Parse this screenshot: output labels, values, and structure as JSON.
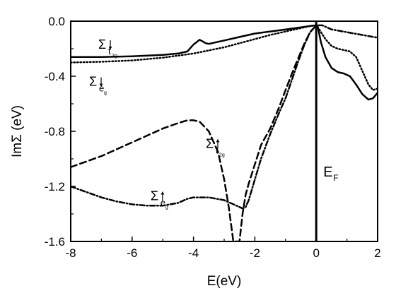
{
  "chart_data": {
    "type": "line",
    "xlabel": "E(eV)",
    "ylabel": "ImΣ (eV)",
    "xlim": [
      -8,
      2
    ],
    "ylim": [
      -1.6,
      0.0
    ],
    "x_ticks": [
      "-8",
      "-6",
      "-4",
      "-2",
      "0",
      "2"
    ],
    "y_ticks": [
      "0.0",
      "-0.4",
      "-0.8",
      "-1.2",
      "-1.6"
    ],
    "grid": false,
    "legend": "none",
    "vline": {
      "x": 0,
      "label": "E",
      "label_sub": "F"
    },
    "annotations": [
      {
        "text": "Σ",
        "sub": "t2g",
        "spin": "down",
        "x": -7.1,
        "y": -0.2
      },
      {
        "text": "Σ",
        "sub": "eg",
        "spin": "down",
        "x": -7.4,
        "y": -0.47
      },
      {
        "text": "Σ",
        "sub": "t2g",
        "spin": "up",
        "x": -3.6,
        "y": -0.92
      },
      {
        "text": "Σ",
        "sub": "eg",
        "spin": "up",
        "x": -5.4,
        "y": -1.3
      }
    ],
    "series": [
      {
        "style": "solid",
        "x": [
          -8,
          -7,
          -6,
          -5,
          -4.5,
          -4.2,
          -4.0,
          -3.8,
          -3.6,
          -3.5,
          -3.3,
          -3.0,
          -2.5,
          -2.0,
          -1.5,
          -1.0,
          -0.5,
          -0.2,
          0.0,
          0.05,
          0.15,
          0.3,
          0.5,
          0.7,
          0.9,
          1.1,
          1.3,
          1.5,
          1.7,
          1.85,
          2.0
        ],
        "y": [
          -0.26,
          -0.26,
          -0.255,
          -0.245,
          -0.235,
          -0.22,
          -0.17,
          -0.135,
          -0.16,
          -0.165,
          -0.155,
          -0.14,
          -0.115,
          -0.09,
          -0.075,
          -0.06,
          -0.045,
          -0.035,
          -0.03,
          -0.04,
          -0.15,
          -0.26,
          -0.34,
          -0.37,
          -0.38,
          -0.4,
          -0.46,
          -0.53,
          -0.57,
          -0.56,
          -0.52
        ]
      },
      {
        "style": "dotted",
        "x": [
          -8,
          -7,
          -6,
          -5,
          -4,
          -3,
          -2,
          -1.5,
          -1.0,
          -0.5,
          -0.2,
          0.0,
          0.1,
          0.3,
          0.5,
          0.7,
          0.9,
          1.1,
          1.3,
          1.5,
          1.7,
          1.85,
          2.0
        ],
        "y": [
          -0.3,
          -0.295,
          -0.285,
          -0.265,
          -0.235,
          -0.19,
          -0.13,
          -0.1,
          -0.075,
          -0.05,
          -0.035,
          -0.03,
          -0.06,
          -0.13,
          -0.18,
          -0.2,
          -0.21,
          -0.22,
          -0.26,
          -0.36,
          -0.46,
          -0.5,
          -0.49
        ]
      },
      {
        "style": "dashed",
        "x": [
          -8,
          -7,
          -6,
          -5,
          -4.5,
          -4.2,
          -4.0,
          -3.8,
          -3.5,
          -3.2,
          -3.0,
          -2.85,
          -2.75,
          -2.7,
          -2.6,
          -2.5,
          -2.4,
          -2.3,
          -2.2,
          -2.0,
          -1.8,
          -1.5,
          -1.2,
          -1.0,
          -0.7,
          -0.4,
          -0.2,
          0.0
        ],
        "y": [
          -1.06,
          -0.98,
          -0.88,
          -0.78,
          -0.74,
          -0.72,
          -0.72,
          -0.73,
          -0.8,
          -0.95,
          -1.15,
          -1.35,
          -1.52,
          -1.6,
          -1.6,
          -1.6,
          -1.4,
          -1.26,
          -1.18,
          -1.04,
          -0.9,
          -0.78,
          -0.62,
          -0.5,
          -0.33,
          -0.17,
          -0.08,
          -0.03
        ]
      },
      {
        "style": "dashdot",
        "x": [
          -8,
          -7.5,
          -7,
          -6.5,
          -6,
          -5.5,
          -5,
          -4.5,
          -4.2,
          -4,
          -3.5,
          -3.0,
          -2.8,
          -2.6,
          -2.4,
          -2.3,
          -2.2,
          -2.0,
          -1.8,
          -1.5,
          -1.2,
          -1.0,
          -0.8,
          -0.6,
          -0.4,
          -0.2,
          0.0,
          0.2,
          0.5,
          1.0,
          1.5,
          2.0
        ],
        "y": [
          -1.2,
          -1.24,
          -1.28,
          -1.31,
          -1.33,
          -1.34,
          -1.34,
          -1.32,
          -1.29,
          -1.28,
          -1.28,
          -1.3,
          -1.32,
          -1.34,
          -1.36,
          -1.35,
          -1.3,
          -1.15,
          -1.0,
          -0.82,
          -0.66,
          -0.56,
          -0.43,
          -0.3,
          -0.18,
          -0.08,
          -0.03,
          -0.03,
          -0.06,
          -0.08,
          -0.1,
          -0.12
        ]
      }
    ]
  }
}
